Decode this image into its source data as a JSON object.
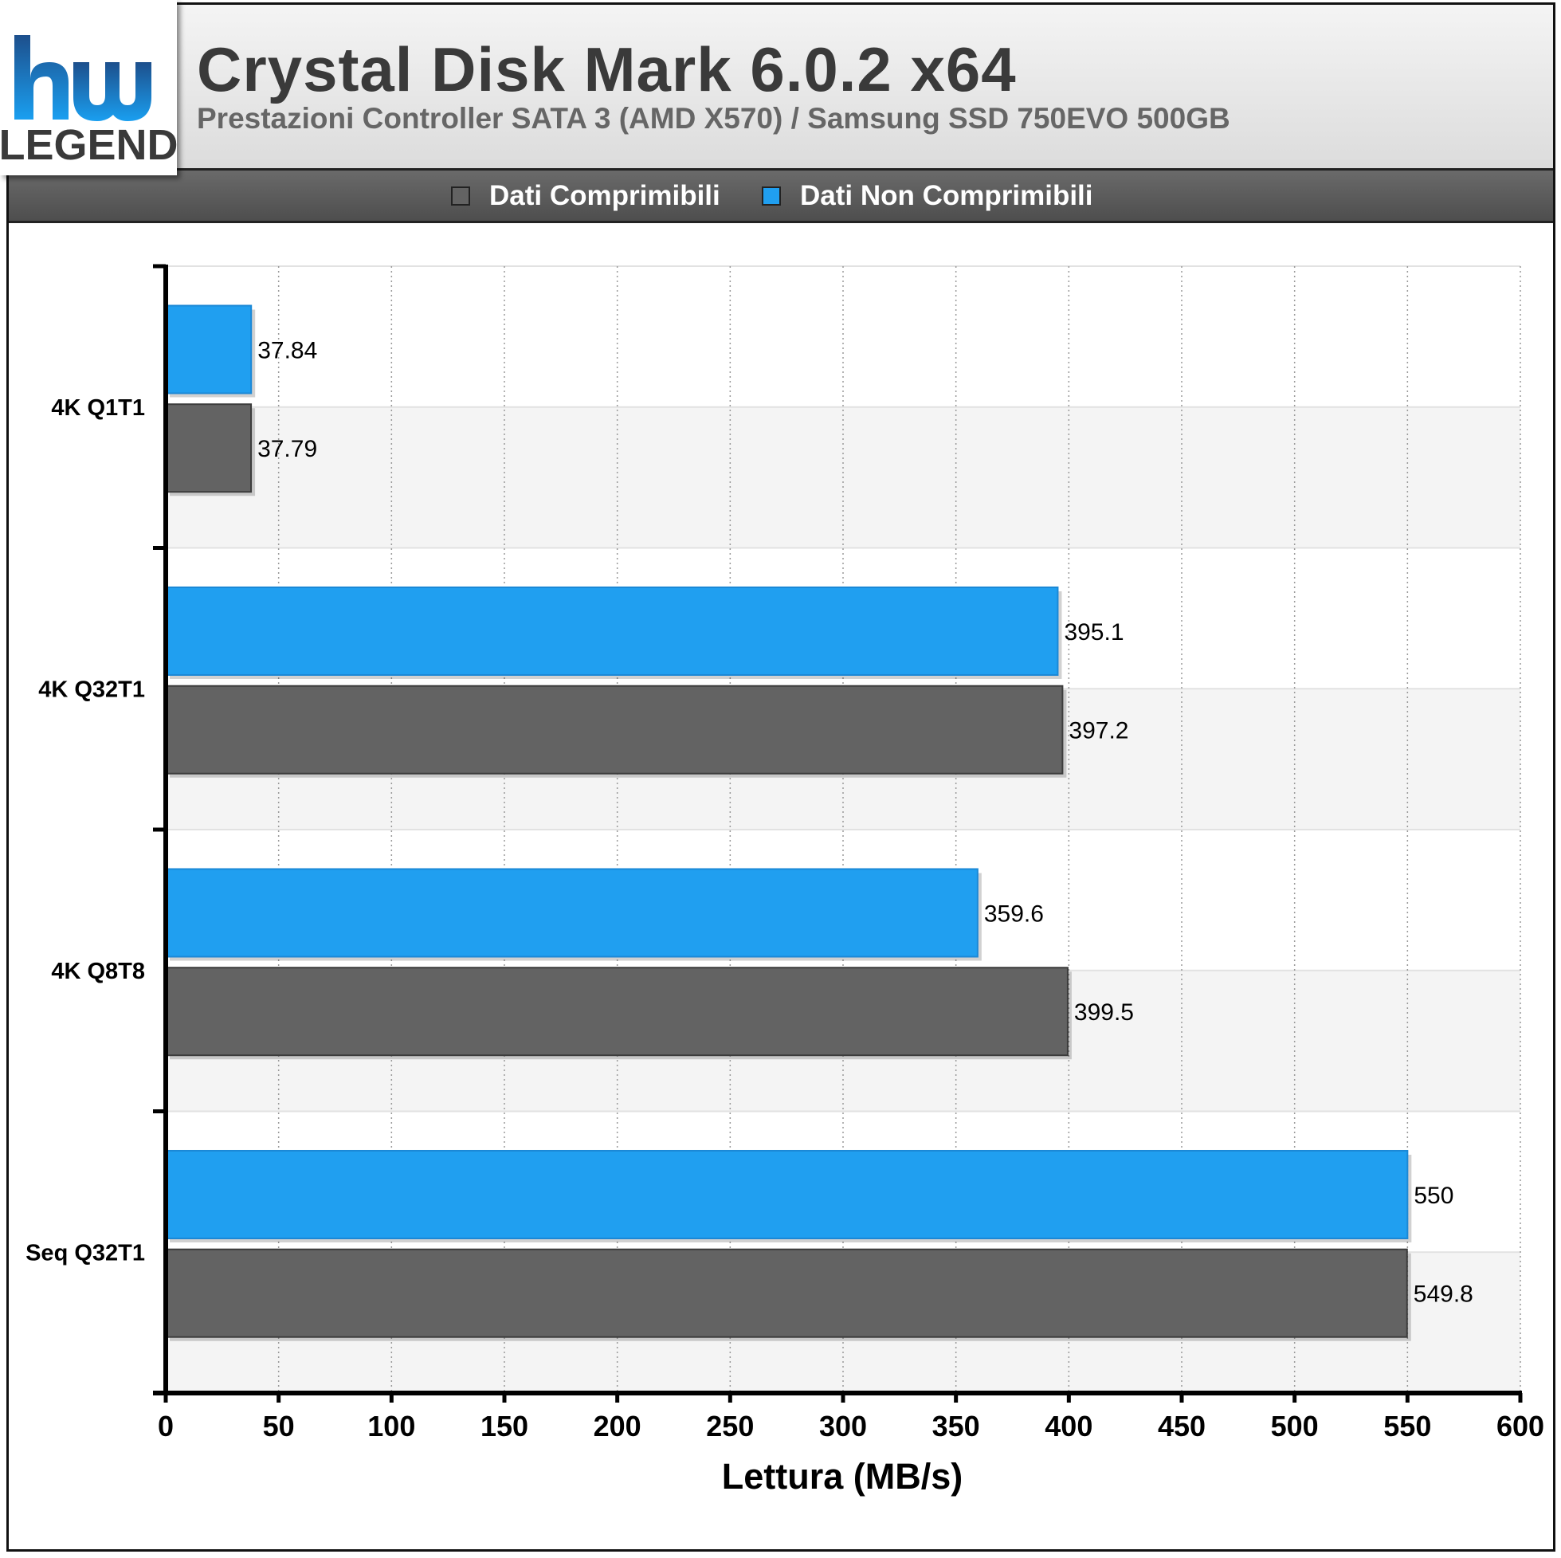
{
  "logo": {
    "top_text": "hw",
    "bottom_text": "LEGEND"
  },
  "header": {
    "title": "Crystal Disk Mark 6.0.2 x64",
    "subtitle": "Prestazioni Controller SATA 3 (AMD X570) / Samsung SSD 750EVO 500GB"
  },
  "legend": [
    {
      "label": "Dati Comprimibili",
      "color": "#636363"
    },
    {
      "label": "Dati Non Comprimibili",
      "color": "#209ff0"
    }
  ],
  "chart_data": {
    "type": "bar",
    "orientation": "horizontal",
    "categories": [
      "4K Q1T1",
      "4K Q32T1",
      "4K Q8T8",
      "Seq Q32T1"
    ],
    "series": [
      {
        "name": "Dati Non Comprimibili",
        "color": "#209ff0",
        "values": [
          37.84,
          395.1,
          359.6,
          550
        ],
        "labels": [
          "37.84",
          "395.1",
          "359.6",
          "550"
        ]
      },
      {
        "name": "Dati Comprimibili",
        "color": "#636363",
        "values": [
          37.79,
          397.2,
          399.5,
          549.8
        ],
        "labels": [
          "37.79",
          "397.2",
          "399.5",
          "549.8"
        ]
      }
    ],
    "xlabel": "Lettura (MB/s)",
    "xlim": [
      0,
      600
    ],
    "xticks": [
      0,
      50,
      100,
      150,
      200,
      250,
      300,
      350,
      400,
      450,
      500,
      550,
      600
    ],
    "grid": "vertical-dotted"
  }
}
